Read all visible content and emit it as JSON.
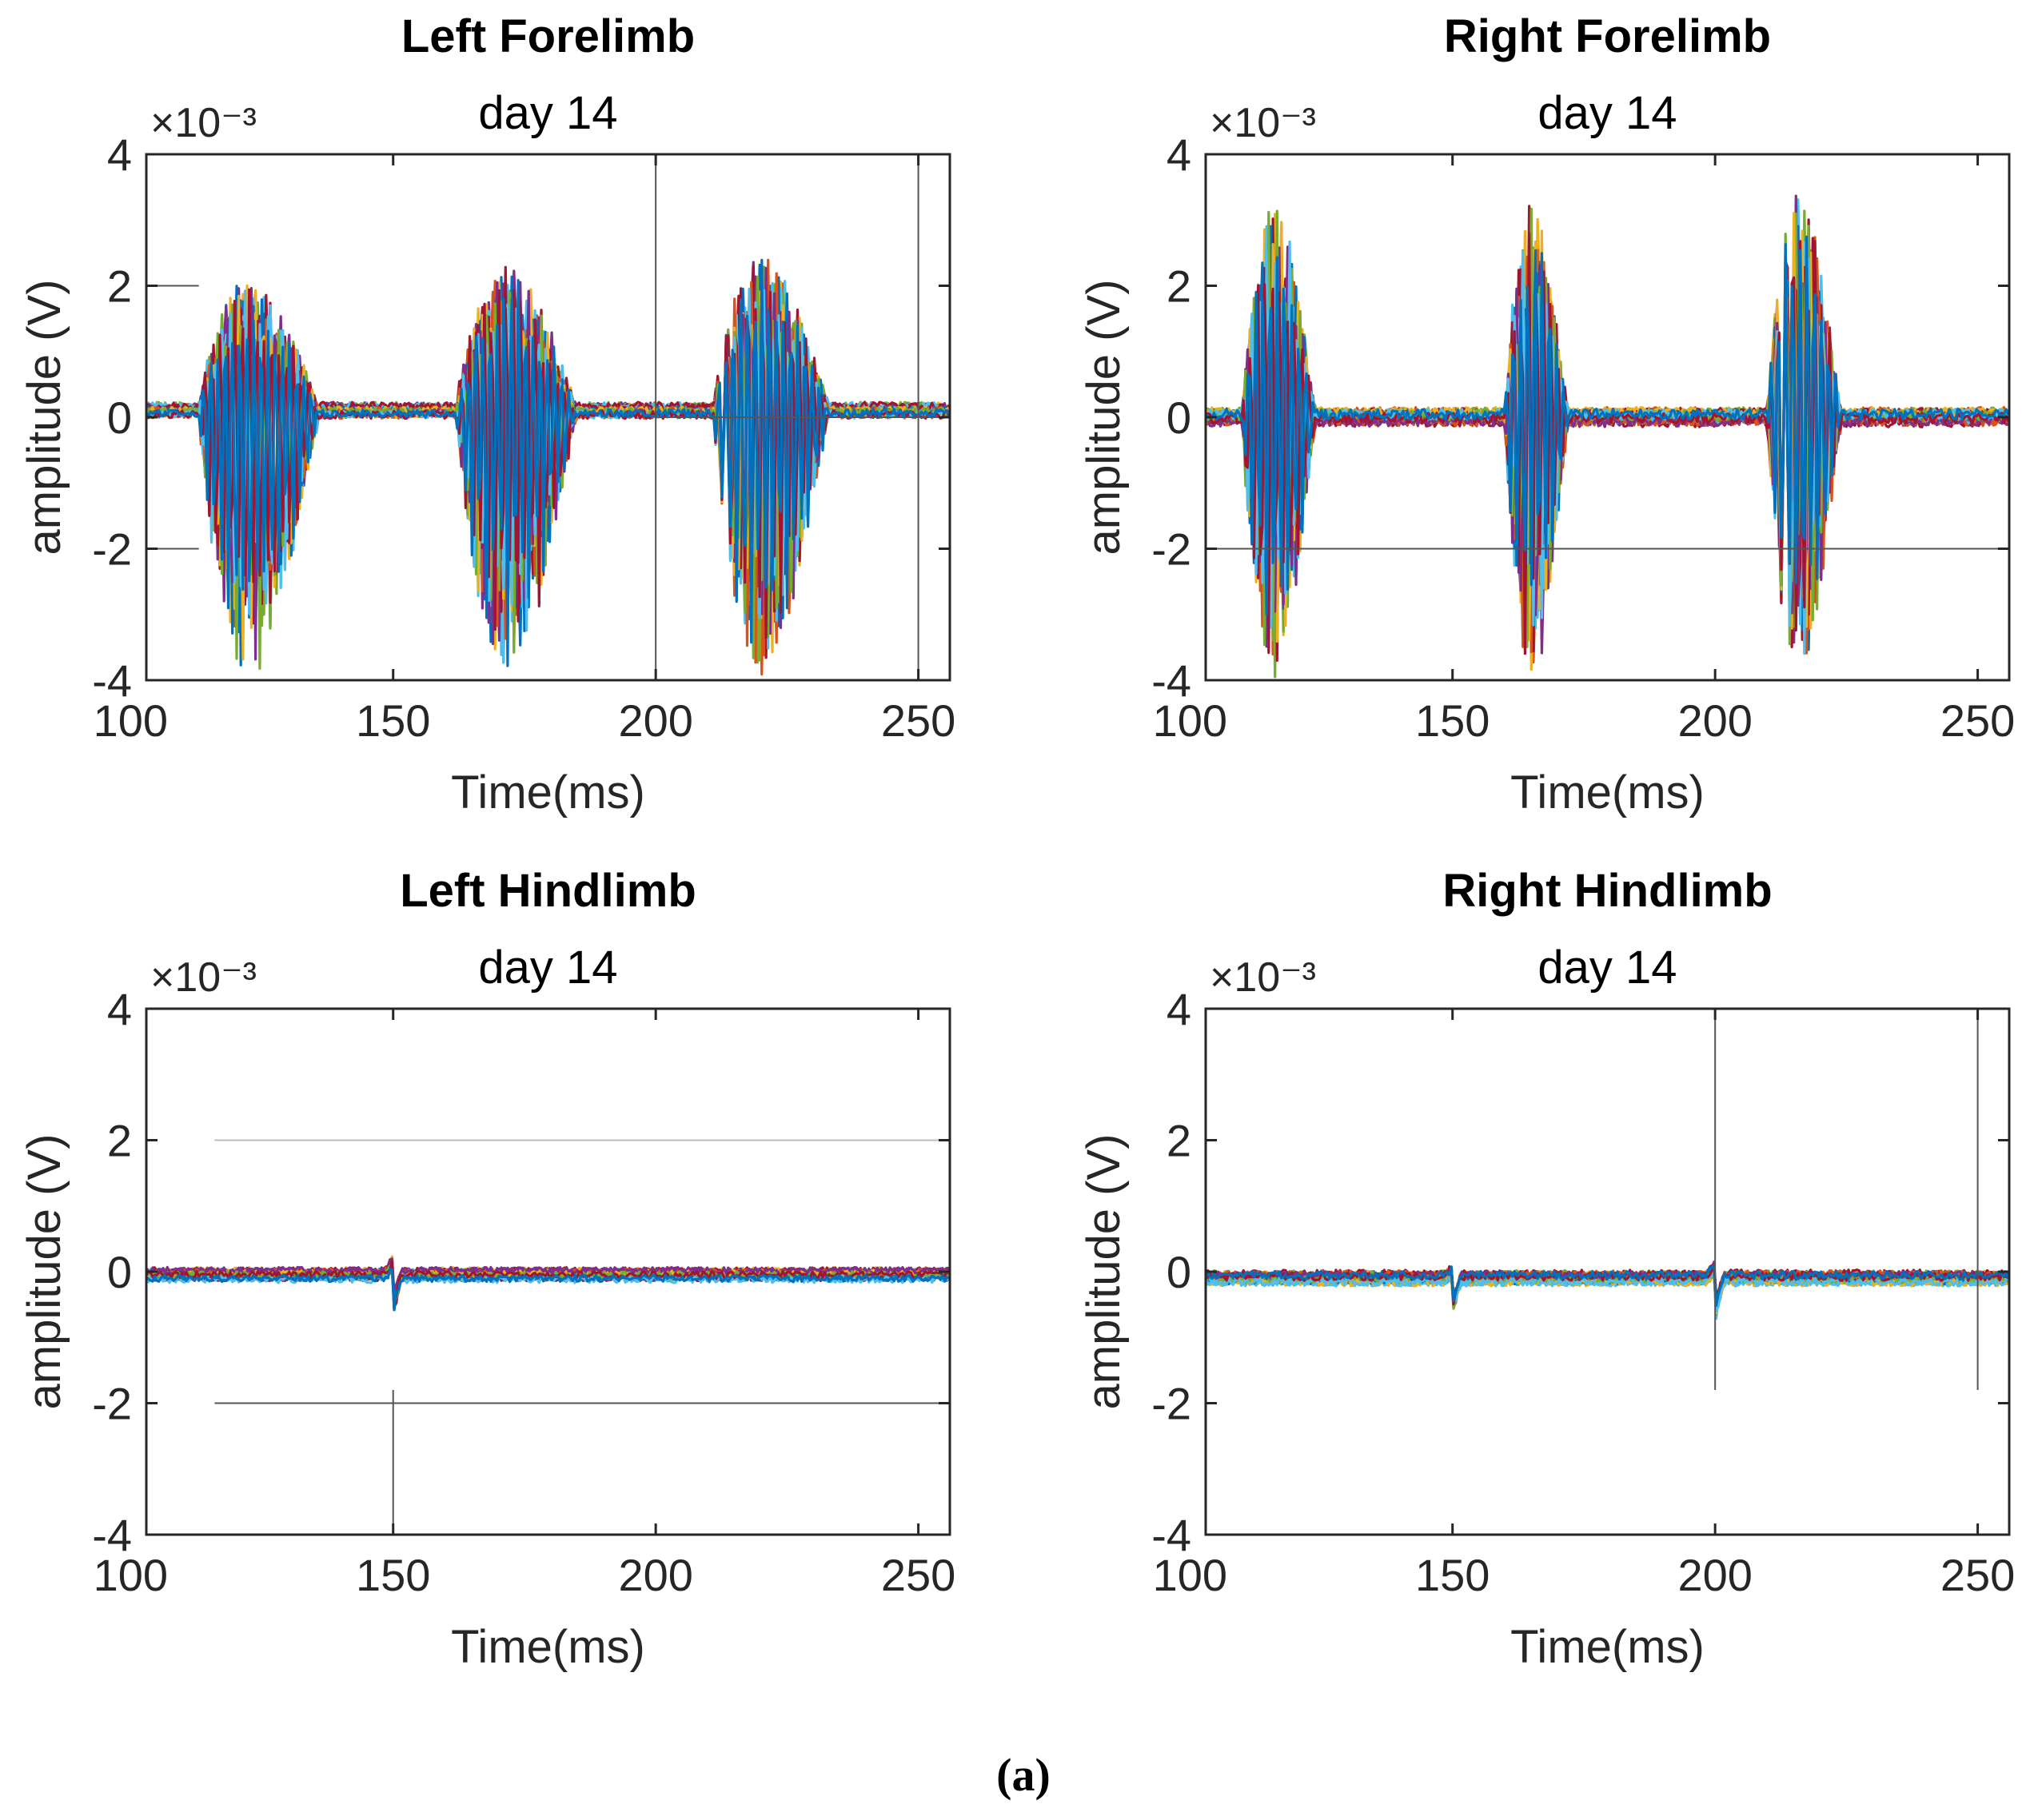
{
  "caption": "(a)",
  "palette": [
    "#0072BD",
    "#D95319",
    "#EDB120",
    "#7E2F8E",
    "#77AC30",
    "#4DBEEE",
    "#A2142F"
  ],
  "chart_data": [
    {
      "type": "line",
      "title": "Left Forelimb",
      "subtitle": "day 14",
      "xlabel": "Time(ms)",
      "ylabel": "amplitude (V)",
      "y_exponent_label": "×10⁻³",
      "xlim": [
        103,
        256
      ],
      "ylim": [
        -4,
        4
      ],
      "xticks": [
        100,
        150,
        200,
        250
      ],
      "yticks": [
        4,
        2,
        0,
        -2,
        -4
      ],
      "grid": false,
      "n_traces": 22,
      "baseline_mV": 0.1,
      "noise_mV": 0.06,
      "bursts": [
        {
          "start_ms": 113,
          "end_ms": 136,
          "peak_pos_mV": 2.0,
          "peak_neg_mV": -4.0
        },
        {
          "start_ms": 162,
          "end_ms": 185,
          "peak_pos_mV": 2.2,
          "peak_neg_mV": -4.0
        },
        {
          "start_ms": 211,
          "end_ms": 233,
          "peak_pos_mV": 2.4,
          "peak_neg_mV": -4.0
        }
      ],
      "reference_lines": [
        {
          "orientation": "h",
          "y_mV": 2,
          "x_from": 103,
          "x_to": 113
        },
        {
          "orientation": "h",
          "y_mV": -2,
          "x_from": 103,
          "x_to": 113
        },
        {
          "orientation": "h",
          "y_mV": 0,
          "x_from": 200,
          "x_to": 256
        },
        {
          "orientation": "v",
          "x_ms": 200,
          "y_from": -4,
          "y_to": 4
        },
        {
          "orientation": "v",
          "x_ms": 250,
          "y_from": -4,
          "y_to": 4
        }
      ]
    },
    {
      "type": "line",
      "title": "Right Forelimb",
      "subtitle": "day 14",
      "xlabel": "Time(ms)",
      "ylabel": "amplitude (V)",
      "y_exponent_label": "×10⁻³",
      "xlim": [
        103,
        256
      ],
      "ylim": [
        -4,
        4
      ],
      "xticks": [
        100,
        150,
        200,
        250
      ],
      "yticks": [
        4,
        2,
        0,
        -2,
        -4
      ],
      "grid": false,
      "n_traces": 22,
      "baseline_mV": 0.0,
      "noise_mV": 0.08,
      "bursts": [
        {
          "start_ms": 110,
          "end_ms": 124,
          "peak_pos_mV": 3.3,
          "peak_neg_mV": -4.0
        },
        {
          "start_ms": 160,
          "end_ms": 172,
          "peak_pos_mV": 3.2,
          "peak_neg_mV": -4.0
        },
        {
          "start_ms": 210,
          "end_ms": 224,
          "peak_pos_mV": 3.5,
          "peak_neg_mV": -4.0
        }
      ],
      "reference_lines": [
        {
          "orientation": "h",
          "y_mV": -2,
          "x_from": 103,
          "x_to": 256
        }
      ]
    },
    {
      "type": "line",
      "title": "Left Hindlimb",
      "subtitle": "day 14",
      "xlabel": "Time(ms)",
      "ylabel": "amplitude (V)",
      "y_exponent_label": "×10⁻³",
      "xlim": [
        103,
        256
      ],
      "ylim": [
        -4,
        4
      ],
      "xticks": [
        100,
        150,
        200,
        250
      ],
      "yticks": [
        4,
        2,
        0,
        -2,
        -4
      ],
      "grid": false,
      "n_traces": 22,
      "baseline_mV": -0.05,
      "noise_mV": 0.05,
      "spikes": [
        {
          "x_ms": 150,
          "peak_pos_mV": 0.2,
          "peak_neg_mV": -0.6
        }
      ],
      "reference_lines": [
        {
          "orientation": "h",
          "y_mV": 2,
          "x_from": 116,
          "x_to": 256,
          "color": "#bdbdbd"
        },
        {
          "orientation": "h",
          "y_mV": -2,
          "x_from": 116,
          "x_to": 256
        },
        {
          "orientation": "v",
          "x_ms": 150,
          "y_from": -4,
          "y_to": -1.8
        }
      ]
    },
    {
      "type": "line",
      "title": "Right Hindlimb",
      "subtitle": "day 14",
      "xlabel": "Time(ms)",
      "ylabel": "amplitude (V)",
      "y_exponent_label": "×10⁻³",
      "xlim": [
        103,
        256
      ],
      "ylim": [
        -4,
        4
      ],
      "xticks": [
        100,
        150,
        200,
        250
      ],
      "yticks": [
        4,
        2,
        0,
        -2,
        -4
      ],
      "grid": false,
      "n_traces": 22,
      "baseline_mV": -0.1,
      "noise_mV": 0.06,
      "spikes": [
        {
          "x_ms": 150,
          "peak_pos_mV": 0.1,
          "peak_neg_mV": -0.5
        },
        {
          "x_ms": 200,
          "peak_pos_mV": 0.2,
          "peak_neg_mV": -0.6
        }
      ],
      "reference_lines": [
        {
          "orientation": "v",
          "x_ms": 200,
          "y_from": -1.8,
          "y_to": 4
        },
        {
          "orientation": "v",
          "x_ms": 250,
          "y_from": -1.8,
          "y_to": 4
        }
      ]
    }
  ]
}
